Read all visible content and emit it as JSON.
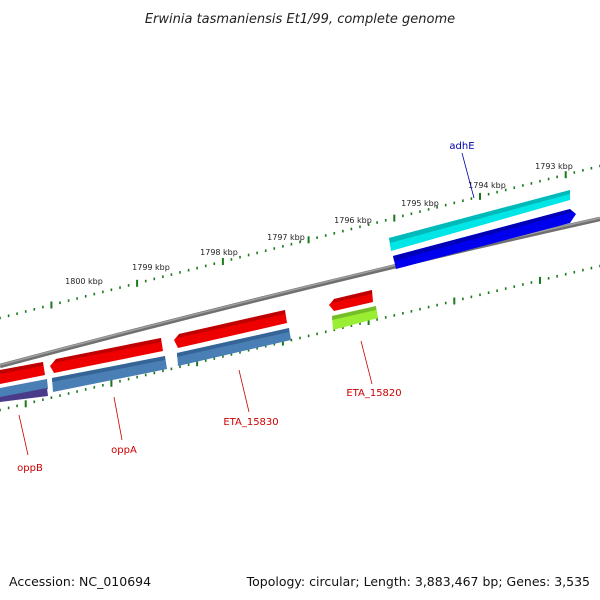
{
  "title": "Erwinia tasmaniensis Et1/99, complete genome",
  "footer": {
    "accession": "Accession: NC_010694",
    "summary": "Topology: circular; Length: 3,883,467 bp; Genes: 3,535"
  },
  "colors": {
    "backbone": "#808080",
    "tick": "#1a7a1a",
    "label_red": "#cc0000",
    "label_blue": "#0000aa"
  },
  "ticks": [
    "1800 kbp",
    "1799 kbp",
    "1798 kbp",
    "1797 kbp",
    "1796 kbp",
    "1795 kbp",
    "1794 kbp",
    "1793 kbp"
  ],
  "gene_labels": [
    "oppB",
    "oppA",
    "ETA_15830",
    "ETA_15820",
    "adhE"
  ],
  "features": [
    {
      "name": "adhE-feature-outer",
      "color": "#00e5e5"
    },
    {
      "name": "adhE-feature-inner",
      "color": "#0000ee"
    },
    {
      "name": "small-red-feature",
      "color": "#ee0000"
    },
    {
      "name": "small-green-feature",
      "color": "#99ee33"
    },
    {
      "name": "eta15830-red-feature",
      "color": "#ee0000"
    },
    {
      "name": "eta15830-blue-feature",
      "color": "#4a7fb5"
    },
    {
      "name": "oppa-red-feature",
      "color": "#ee0000"
    },
    {
      "name": "oppa-blue-feature",
      "color": "#4a7fb5"
    },
    {
      "name": "oppb-red-feature",
      "color": "#ee0000"
    },
    {
      "name": "oppb-blue-feature",
      "color": "#4a7fb5"
    },
    {
      "name": "oppb-purple-feature",
      "color": "#4a3a8a"
    }
  ]
}
